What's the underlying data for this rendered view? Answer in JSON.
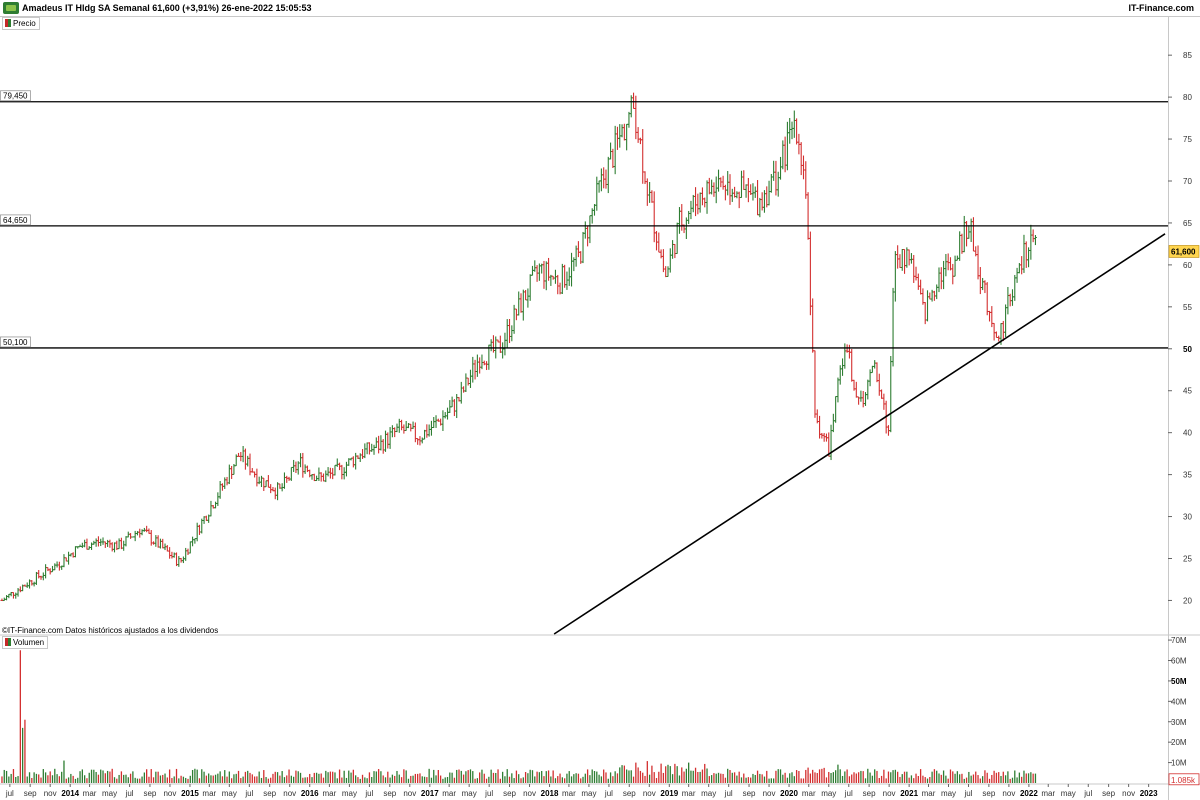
{
  "header": {
    "title": "Amadeus IT Hldg SA Semanal 61,600 (+3,91%) 26-ene-2022 15:05:53",
    "brand": "IT-Finance.com"
  },
  "price_panel": {
    "legend": "Precio",
    "last_price_label": "61,600"
  },
  "volume_panel": {
    "legend": "Volumen",
    "last_volume_label": "1.085k"
  },
  "credit": "IT-Finance.com Datos históricos ajustados a los dividendos",
  "colors": {
    "up": "#2e7d32",
    "down": "#d32f2f",
    "last_price_bg": "#ffd54f",
    "line": "#000000"
  },
  "chart_data": [
    {
      "type": "line",
      "title": "Precio",
      "ylim": [
        16,
        88
      ],
      "y_ticks": [
        20,
        25,
        30,
        35,
        40,
        45,
        50,
        55,
        60,
        65,
        70,
        75,
        80,
        85
      ],
      "y_tick_labels": [
        "20",
        "25",
        "30",
        "35",
        "40",
        "45",
        "50",
        "55",
        "60",
        "65",
        "70",
        "75",
        "80",
        "85"
      ],
      "bold_ticks": [
        50
      ],
      "x_range": [
        "2013-06-01",
        "2023-03-01"
      ],
      "horizontal_levels": [
        {
          "label": "79,450",
          "value": 79.45
        },
        {
          "label": "64,650",
          "value": 64.65
        },
        {
          "label": "50,100",
          "value": 50.1
        }
      ],
      "trendline": {
        "points": [
          [
            "2018-01-15",
            16.0
          ],
          [
            "2023-02-20",
            63.7
          ]
        ]
      },
      "last_price": 61.6,
      "series": [
        {
          "x": [
            "2013-06-07",
            "2013-08-01",
            "2013-10-01",
            "2013-12-01",
            "2014-02-01",
            "2014-04-01",
            "2014-06-01",
            "2014-08-01",
            "2014-10-01",
            "2014-12-01",
            "2015-02-01",
            "2015-04-01",
            "2015-06-01",
            "2015-08-01",
            "2015-10-01",
            "2015-12-01",
            "2016-02-01",
            "2016-04-01",
            "2016-06-01",
            "2016-08-01",
            "2016-10-01",
            "2016-12-01",
            "2017-02-01",
            "2017-04-01",
            "2017-06-01",
            "2017-08-01",
            "2017-10-01",
            "2017-12-01",
            "2018-02-01",
            "2018-04-01",
            "2018-06-01",
            "2018-08-01",
            "2018-09-15",
            "2018-11-01",
            "2018-12-20",
            "2019-02-01",
            "2019-04-01",
            "2019-06-01",
            "2019-08-01",
            "2019-10-01",
            "2019-12-01",
            "2020-01-20",
            "2020-02-20",
            "2020-03-20",
            "2020-05-01",
            "2020-06-20",
            "2020-08-01",
            "2020-09-20",
            "2020-10-30",
            "2020-11-15",
            "2021-01-01",
            "2021-02-15",
            "2021-04-01",
            "2021-05-15",
            "2021-07-01",
            "2021-08-15",
            "2021-10-01",
            "2021-11-01",
            "2021-12-01",
            "2022-01-01",
            "2022-01-26"
          ],
          "y": [
            20.0,
            21.5,
            23.0,
            24.5,
            26.5,
            27.0,
            26.5,
            28.5,
            26.5,
            24.5,
            29.0,
            33.0,
            37.5,
            34.5,
            33.0,
            36.5,
            34.5,
            35.5,
            37.5,
            38.5,
            40.5,
            39.5,
            41.5,
            44.0,
            49.0,
            50.0,
            55.0,
            59.5,
            58.0,
            61.0,
            69.0,
            75.0,
            79.0,
            68.0,
            58.5,
            65.0,
            68.0,
            70.0,
            69.0,
            67.5,
            71.0,
            77.5,
            70.0,
            42.0,
            38.0,
            51.0,
            43.0,
            48.0,
            40.0,
            60.0,
            61.5,
            54.0,
            59.0,
            60.0,
            65.0,
            57.0,
            51.0,
            56.0,
            59.0,
            63.0,
            61.6
          ]
        }
      ]
    },
    {
      "type": "bar",
      "title": "Volumen",
      "ylim": [
        0,
        72
      ],
      "y_ticks": [
        10,
        20,
        30,
        40,
        50,
        60,
        70
      ],
      "y_tick_labels": [
        "10M",
        "20M",
        "30M",
        "40M",
        "50M",
        "60M",
        "70M"
      ],
      "bold_ticks": [
        50
      ],
      "x_tick_labels": [
        "jul",
        "sep",
        "nov",
        "2014",
        "mar",
        "may",
        "jul",
        "sep",
        "nov",
        "2015",
        "mar",
        "may",
        "jul",
        "sep",
        "nov",
        "2016",
        "mar",
        "may",
        "jul",
        "sep",
        "nov",
        "2017",
        "mar",
        "may",
        "jul",
        "sep",
        "nov",
        "2018",
        "mar",
        "may",
        "jul",
        "sep",
        "nov",
        "2019",
        "mar",
        "may",
        "jul",
        "sep",
        "nov",
        "2020",
        "mar",
        "may",
        "jul",
        "sep",
        "nov",
        "2021",
        "mar",
        "may",
        "jul",
        "sep",
        "nov",
        "2022",
        "mar",
        "may",
        "jul",
        "sep",
        "nov",
        "2023"
      ],
      "x_tick_dates": [
        "2013-07-01",
        "2013-09-01",
        "2013-11-01",
        "2014-01-01",
        "2014-03-01",
        "2014-05-01",
        "2014-07-01",
        "2014-09-01",
        "2014-11-01",
        "2015-01-01",
        "2015-03-01",
        "2015-05-01",
        "2015-07-01",
        "2015-09-01",
        "2015-11-01",
        "2016-01-01",
        "2016-03-01",
        "2016-05-01",
        "2016-07-01",
        "2016-09-01",
        "2016-11-01",
        "2017-01-01",
        "2017-03-01",
        "2017-05-01",
        "2017-07-01",
        "2017-09-01",
        "2017-11-01",
        "2018-01-01",
        "2018-03-01",
        "2018-05-01",
        "2018-07-01",
        "2018-09-01",
        "2018-11-01",
        "2019-01-01",
        "2019-03-01",
        "2019-05-01",
        "2019-07-01",
        "2019-09-01",
        "2019-11-01",
        "2020-01-01",
        "2020-03-01",
        "2020-05-01",
        "2020-07-01",
        "2020-09-01",
        "2020-11-01",
        "2021-01-01",
        "2021-03-01",
        "2021-05-01",
        "2021-07-01",
        "2021-09-01",
        "2021-11-01",
        "2022-01-01",
        "2022-03-01",
        "2022-05-01",
        "2022-07-01",
        "2022-09-01",
        "2022-11-01",
        "2023-01-01"
      ],
      "peaks": [
        {
          "x": "2013-08-01",
          "value": 65
        },
        {
          "x": "2013-08-10",
          "value": 27
        },
        {
          "x": "2013-08-17",
          "value": 31
        },
        {
          "x": "2013-12-15",
          "value": 11
        },
        {
          "x": "2018-09-20",
          "value": 10
        },
        {
          "x": "2019-03-01",
          "value": 10
        }
      ],
      "last_volume": 1.085
    }
  ]
}
